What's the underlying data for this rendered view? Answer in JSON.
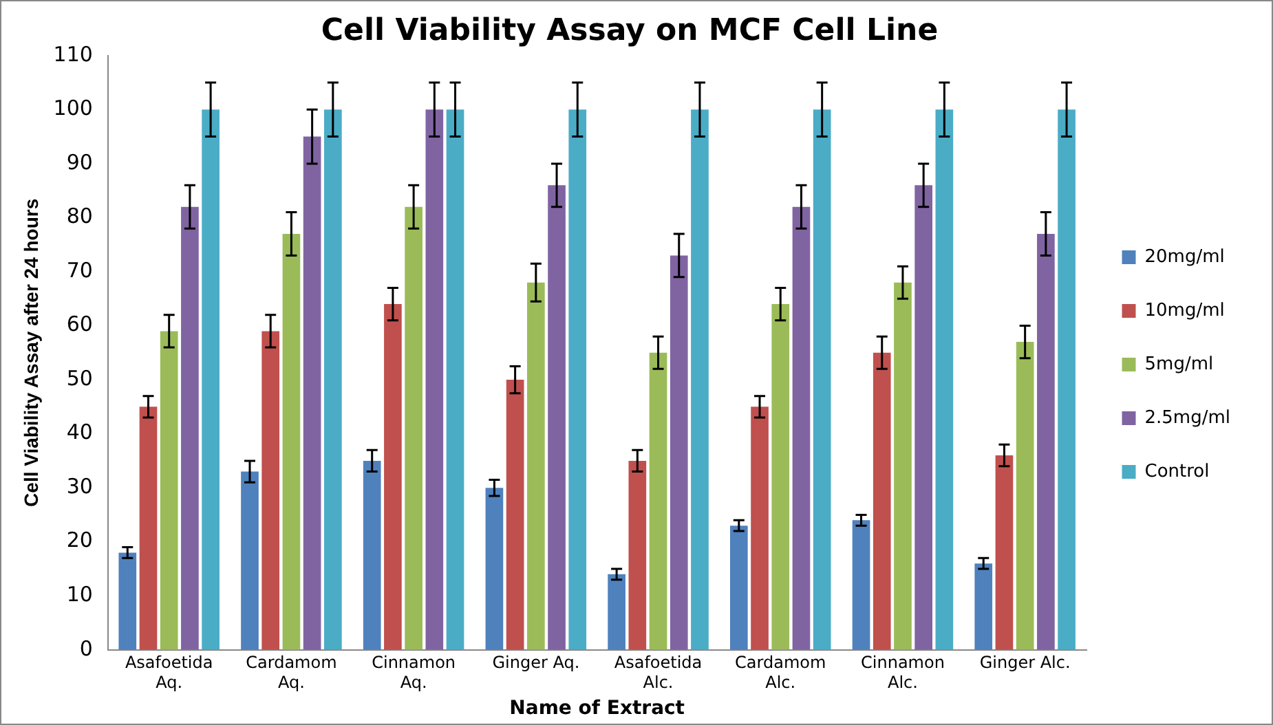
{
  "chart_data": {
    "type": "bar",
    "title": "Cell Viability Assay on MCF Cell Line",
    "xlabel": "Name of Extract",
    "ylabel": "Cell Viability Assay after 24 hours",
    "categories": [
      "Asafoetida Aq.",
      "Cardamom Aq.",
      "Cinnamon Aq.",
      "Ginger Aq.",
      "Asafoetida Alc.",
      "Cardamom Alc.",
      "Cinnamon Alc.",
      "Ginger Alc."
    ],
    "series": [
      {
        "name": "20mg/ml",
        "color": "#4f81bd",
        "values": [
          18,
          33,
          35,
          30,
          14,
          23,
          24,
          16
        ],
        "errors": [
          1,
          2,
          2,
          1.5,
          1,
          1,
          1,
          1
        ]
      },
      {
        "name": "10mg/ml",
        "color": "#c0504d",
        "values": [
          45,
          59,
          64,
          50,
          35,
          45,
          55,
          36
        ],
        "errors": [
          2,
          3,
          3,
          2.5,
          2,
          2,
          3,
          2
        ]
      },
      {
        "name": "5mg/ml",
        "color": "#9bbb59",
        "values": [
          59,
          77,
          82,
          68,
          55,
          64,
          68,
          57
        ],
        "errors": [
          3,
          4,
          4,
          3.5,
          3,
          3,
          3,
          3
        ]
      },
      {
        "name": "2.5mg/ml",
        "color": "#8064a2",
        "values": [
          82,
          95,
          100,
          86,
          73,
          82,
          86,
          77
        ],
        "errors": [
          4,
          5,
          5,
          4,
          4,
          4,
          4,
          4
        ]
      },
      {
        "name": "Control",
        "color": "#4bacc6",
        "values": [
          100,
          100,
          100,
          100,
          100,
          100,
          100,
          100
        ],
        "errors": [
          5,
          5,
          5,
          5,
          5,
          5,
          5,
          5
        ]
      }
    ],
    "ylim": [
      0,
      110
    ],
    "yticks": [
      0,
      10,
      20,
      30,
      40,
      50,
      60,
      70,
      80,
      90,
      100,
      110
    ],
    "grid": false,
    "legend": "right"
  }
}
